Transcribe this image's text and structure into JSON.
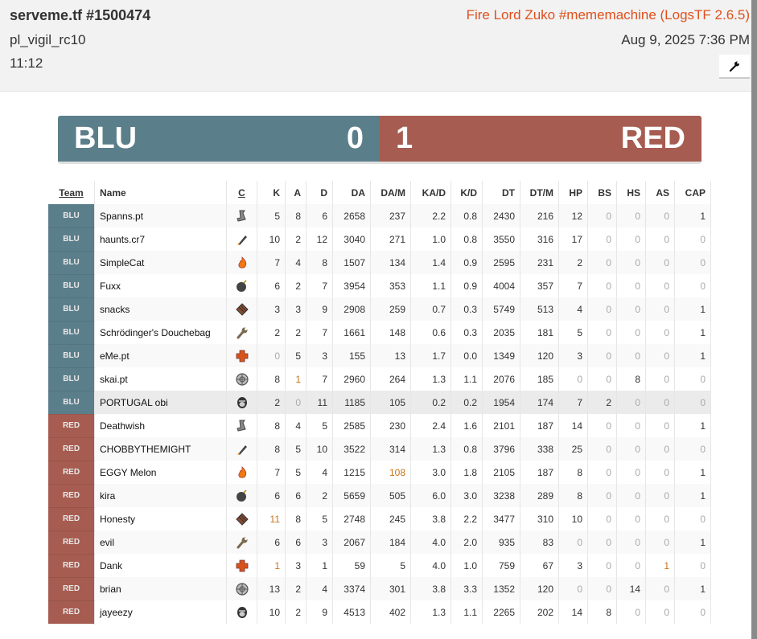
{
  "header": {
    "title": "serveme.tf #1500474",
    "map": "pl_vigil_rc10",
    "duration": "11:12",
    "uploader": "Fire Lord Zuko #mememachine (LogsTF 2.6.5)",
    "date": "Aug 9, 2025 7:36 PM",
    "tools_icon": "wrench-icon"
  },
  "score": {
    "blu_label": "BLU",
    "blu_score": "0",
    "red_score": "1",
    "red_label": "RED"
  },
  "colors": {
    "blu": "#5b7e8b",
    "red": "#a65c50",
    "accent": "#e0501c",
    "highlight": "#c8741a"
  },
  "table": {
    "columns": [
      "Team",
      "Name",
      "C",
      "K",
      "A",
      "D",
      "DA",
      "DA/M",
      "KA/D",
      "K/D",
      "DT",
      "DT/M",
      "HP",
      "BS",
      "HS",
      "AS",
      "CAP"
    ],
    "rows": [
      {
        "team": "BLU",
        "name": "Spanns.pt",
        "class": "scout",
        "stats": [
          "5",
          "8",
          "6",
          "2658",
          "237",
          "2.2",
          "0.8",
          "2430",
          "216",
          "12",
          "0",
          "0",
          "0",
          "1"
        ],
        "hl": []
      },
      {
        "team": "BLU",
        "name": "haunts.cr7",
        "class": "soldier",
        "stats": [
          "10",
          "2",
          "12",
          "3040",
          "271",
          "1.0",
          "0.8",
          "3550",
          "316",
          "17",
          "0",
          "0",
          "0",
          "0"
        ],
        "hl": []
      },
      {
        "team": "BLU",
        "name": "SimpleCat",
        "class": "pyro",
        "stats": [
          "7",
          "4",
          "8",
          "1507",
          "134",
          "1.4",
          "0.9",
          "2595",
          "231",
          "2",
          "0",
          "0",
          "0",
          "0"
        ],
        "hl": []
      },
      {
        "team": "BLU",
        "name": "Fuxx",
        "class": "demoman",
        "stats": [
          "6",
          "2",
          "7",
          "3954",
          "353",
          "1.1",
          "0.9",
          "4004",
          "357",
          "7",
          "0",
          "0",
          "0",
          "0"
        ],
        "hl": []
      },
      {
        "team": "BLU",
        "name": "snacks",
        "class": "heavy",
        "stats": [
          "3",
          "3",
          "9",
          "2908",
          "259",
          "0.7",
          "0.3",
          "5749",
          "513",
          "4",
          "0",
          "0",
          "0",
          "1"
        ],
        "hl": []
      },
      {
        "team": "BLU",
        "name": "Schrödinger's Douchebag",
        "class": "engineer",
        "stats": [
          "2",
          "2",
          "7",
          "1661",
          "148",
          "0.6",
          "0.3",
          "2035",
          "181",
          "5",
          "0",
          "0",
          "0",
          "1"
        ],
        "hl": []
      },
      {
        "team": "BLU",
        "name": "eMe.pt",
        "class": "medic",
        "stats": [
          "0",
          "5",
          "3",
          "155",
          "13",
          "1.7",
          "0.0",
          "1349",
          "120",
          "3",
          "0",
          "0",
          "0",
          "1"
        ],
        "hl": []
      },
      {
        "team": "BLU",
        "name": "skai.pt",
        "class": "sniper",
        "stats": [
          "8",
          "1",
          "7",
          "2960",
          "264",
          "1.3",
          "1.1",
          "2076",
          "185",
          "0",
          "0",
          "8",
          "0",
          "0"
        ],
        "hl": [
          1
        ]
      },
      {
        "team": "BLU",
        "name": "PORTUGAL obi",
        "class": "spy",
        "stats": [
          "2",
          "0",
          "11",
          "1185",
          "105",
          "0.2",
          "0.2",
          "1954",
          "174",
          "7",
          "2",
          "0",
          "0",
          "0"
        ],
        "hl": []
      },
      {
        "team": "RED",
        "name": "Deathwish",
        "class": "scout",
        "stats": [
          "8",
          "4",
          "5",
          "2585",
          "230",
          "2.4",
          "1.6",
          "2101",
          "187",
          "14",
          "0",
          "0",
          "0",
          "1"
        ],
        "hl": []
      },
      {
        "team": "RED",
        "name": "CHOBBYTHEMIGHT",
        "class": "soldier",
        "stats": [
          "8",
          "5",
          "10",
          "3522",
          "314",
          "1.3",
          "0.8",
          "3796",
          "338",
          "25",
          "0",
          "0",
          "0",
          "0"
        ],
        "hl": []
      },
      {
        "team": "RED",
        "name": "EGGY Melon",
        "class": "pyro",
        "stats": [
          "7",
          "5",
          "4",
          "1215",
          "108",
          "3.0",
          "1.8",
          "2105",
          "187",
          "8",
          "0",
          "0",
          "0",
          "1"
        ],
        "hl": [
          4
        ]
      },
      {
        "team": "RED",
        "name": "kira",
        "class": "demoman",
        "stats": [
          "6",
          "6",
          "2",
          "5659",
          "505",
          "6.0",
          "3.0",
          "3238",
          "289",
          "8",
          "0",
          "0",
          "0",
          "1"
        ],
        "hl": []
      },
      {
        "team": "RED",
        "name": "Honesty",
        "class": "heavy",
        "stats": [
          "11",
          "8",
          "5",
          "2748",
          "245",
          "3.8",
          "2.2",
          "3477",
          "310",
          "10",
          "0",
          "0",
          "0",
          "0"
        ],
        "hl": [
          0
        ]
      },
      {
        "team": "RED",
        "name": "evil",
        "class": "engineer",
        "stats": [
          "6",
          "6",
          "3",
          "2067",
          "184",
          "4.0",
          "2.0",
          "935",
          "83",
          "0",
          "0",
          "0",
          "0",
          "1"
        ],
        "hl": []
      },
      {
        "team": "RED",
        "name": "Dank",
        "class": "medic",
        "stats": [
          "1",
          "3",
          "1",
          "59",
          "5",
          "4.0",
          "1.0",
          "759",
          "67",
          "3",
          "0",
          "0",
          "1",
          "0"
        ],
        "hl": [
          0,
          12
        ]
      },
      {
        "team": "RED",
        "name": "brian",
        "class": "sniper",
        "stats": [
          "13",
          "2",
          "4",
          "3374",
          "301",
          "3.8",
          "3.3",
          "1352",
          "120",
          "0",
          "0",
          "14",
          "0",
          "1"
        ],
        "hl": []
      },
      {
        "team": "RED",
        "name": "jayeezy",
        "class": "spy",
        "stats": [
          "10",
          "2",
          "9",
          "4513",
          "402",
          "1.3",
          "1.1",
          "2265",
          "202",
          "14",
          "8",
          "0",
          "0",
          "0"
        ],
        "hl": []
      }
    ]
  }
}
